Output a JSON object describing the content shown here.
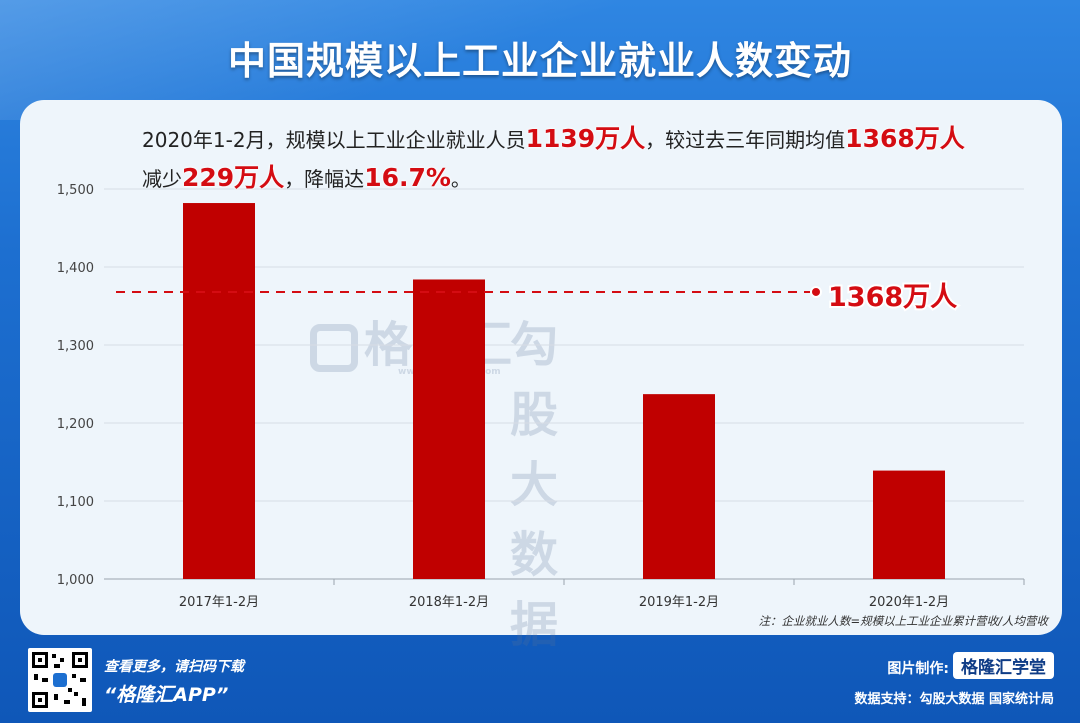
{
  "header": {
    "title": "中国规模以上工业企业就业人数变动"
  },
  "summary": {
    "line1_a": "2020年1-2月，规模以上工业企业就业人员",
    "line1_hl1": "1139万人",
    "line1_b": "，较过去三年同期均值",
    "line1_hl2": "1368万人",
    "line2_a": "减少",
    "line2_hl1": "229万人",
    "line2_b": "，降幅达",
    "line2_hl2": "16.7%",
    "line2_c": "。"
  },
  "watermark": {
    "logo_text": "格隆汇",
    "logo_sub": "www.gelonghui.com",
    "text": "勾股大数据"
  },
  "chart_data": {
    "type": "bar",
    "categories": [
      "2017年1-2月",
      "2018年1-2月",
      "2019年1-2月",
      "2020年1-2月"
    ],
    "values": [
      1482,
      1384,
      1237,
      1139
    ],
    "ylim": [
      1000,
      1500
    ],
    "yticks": [
      1000,
      1100,
      1200,
      1300,
      1400,
      1500
    ],
    "ytick_labels": [
      "1,000",
      "1,100",
      "1,200",
      "1,300",
      "1,400",
      "1,500"
    ],
    "bar_color": "#c00000",
    "reference_line": {
      "value": 1368,
      "label": "1368万人",
      "color": "#d40c12"
    },
    "grid": true
  },
  "note": "注：企业就业人数=规模以上工业企业累计营收/人均营收",
  "footer": {
    "scan_text": "查看更多，请扫码下载",
    "app_text": "“格隆汇APP”",
    "made_by_label": "图片制作:",
    "made_by_brand": "格隆汇学堂",
    "data_support": "数据支持：勾股大数据  国家统计局"
  }
}
